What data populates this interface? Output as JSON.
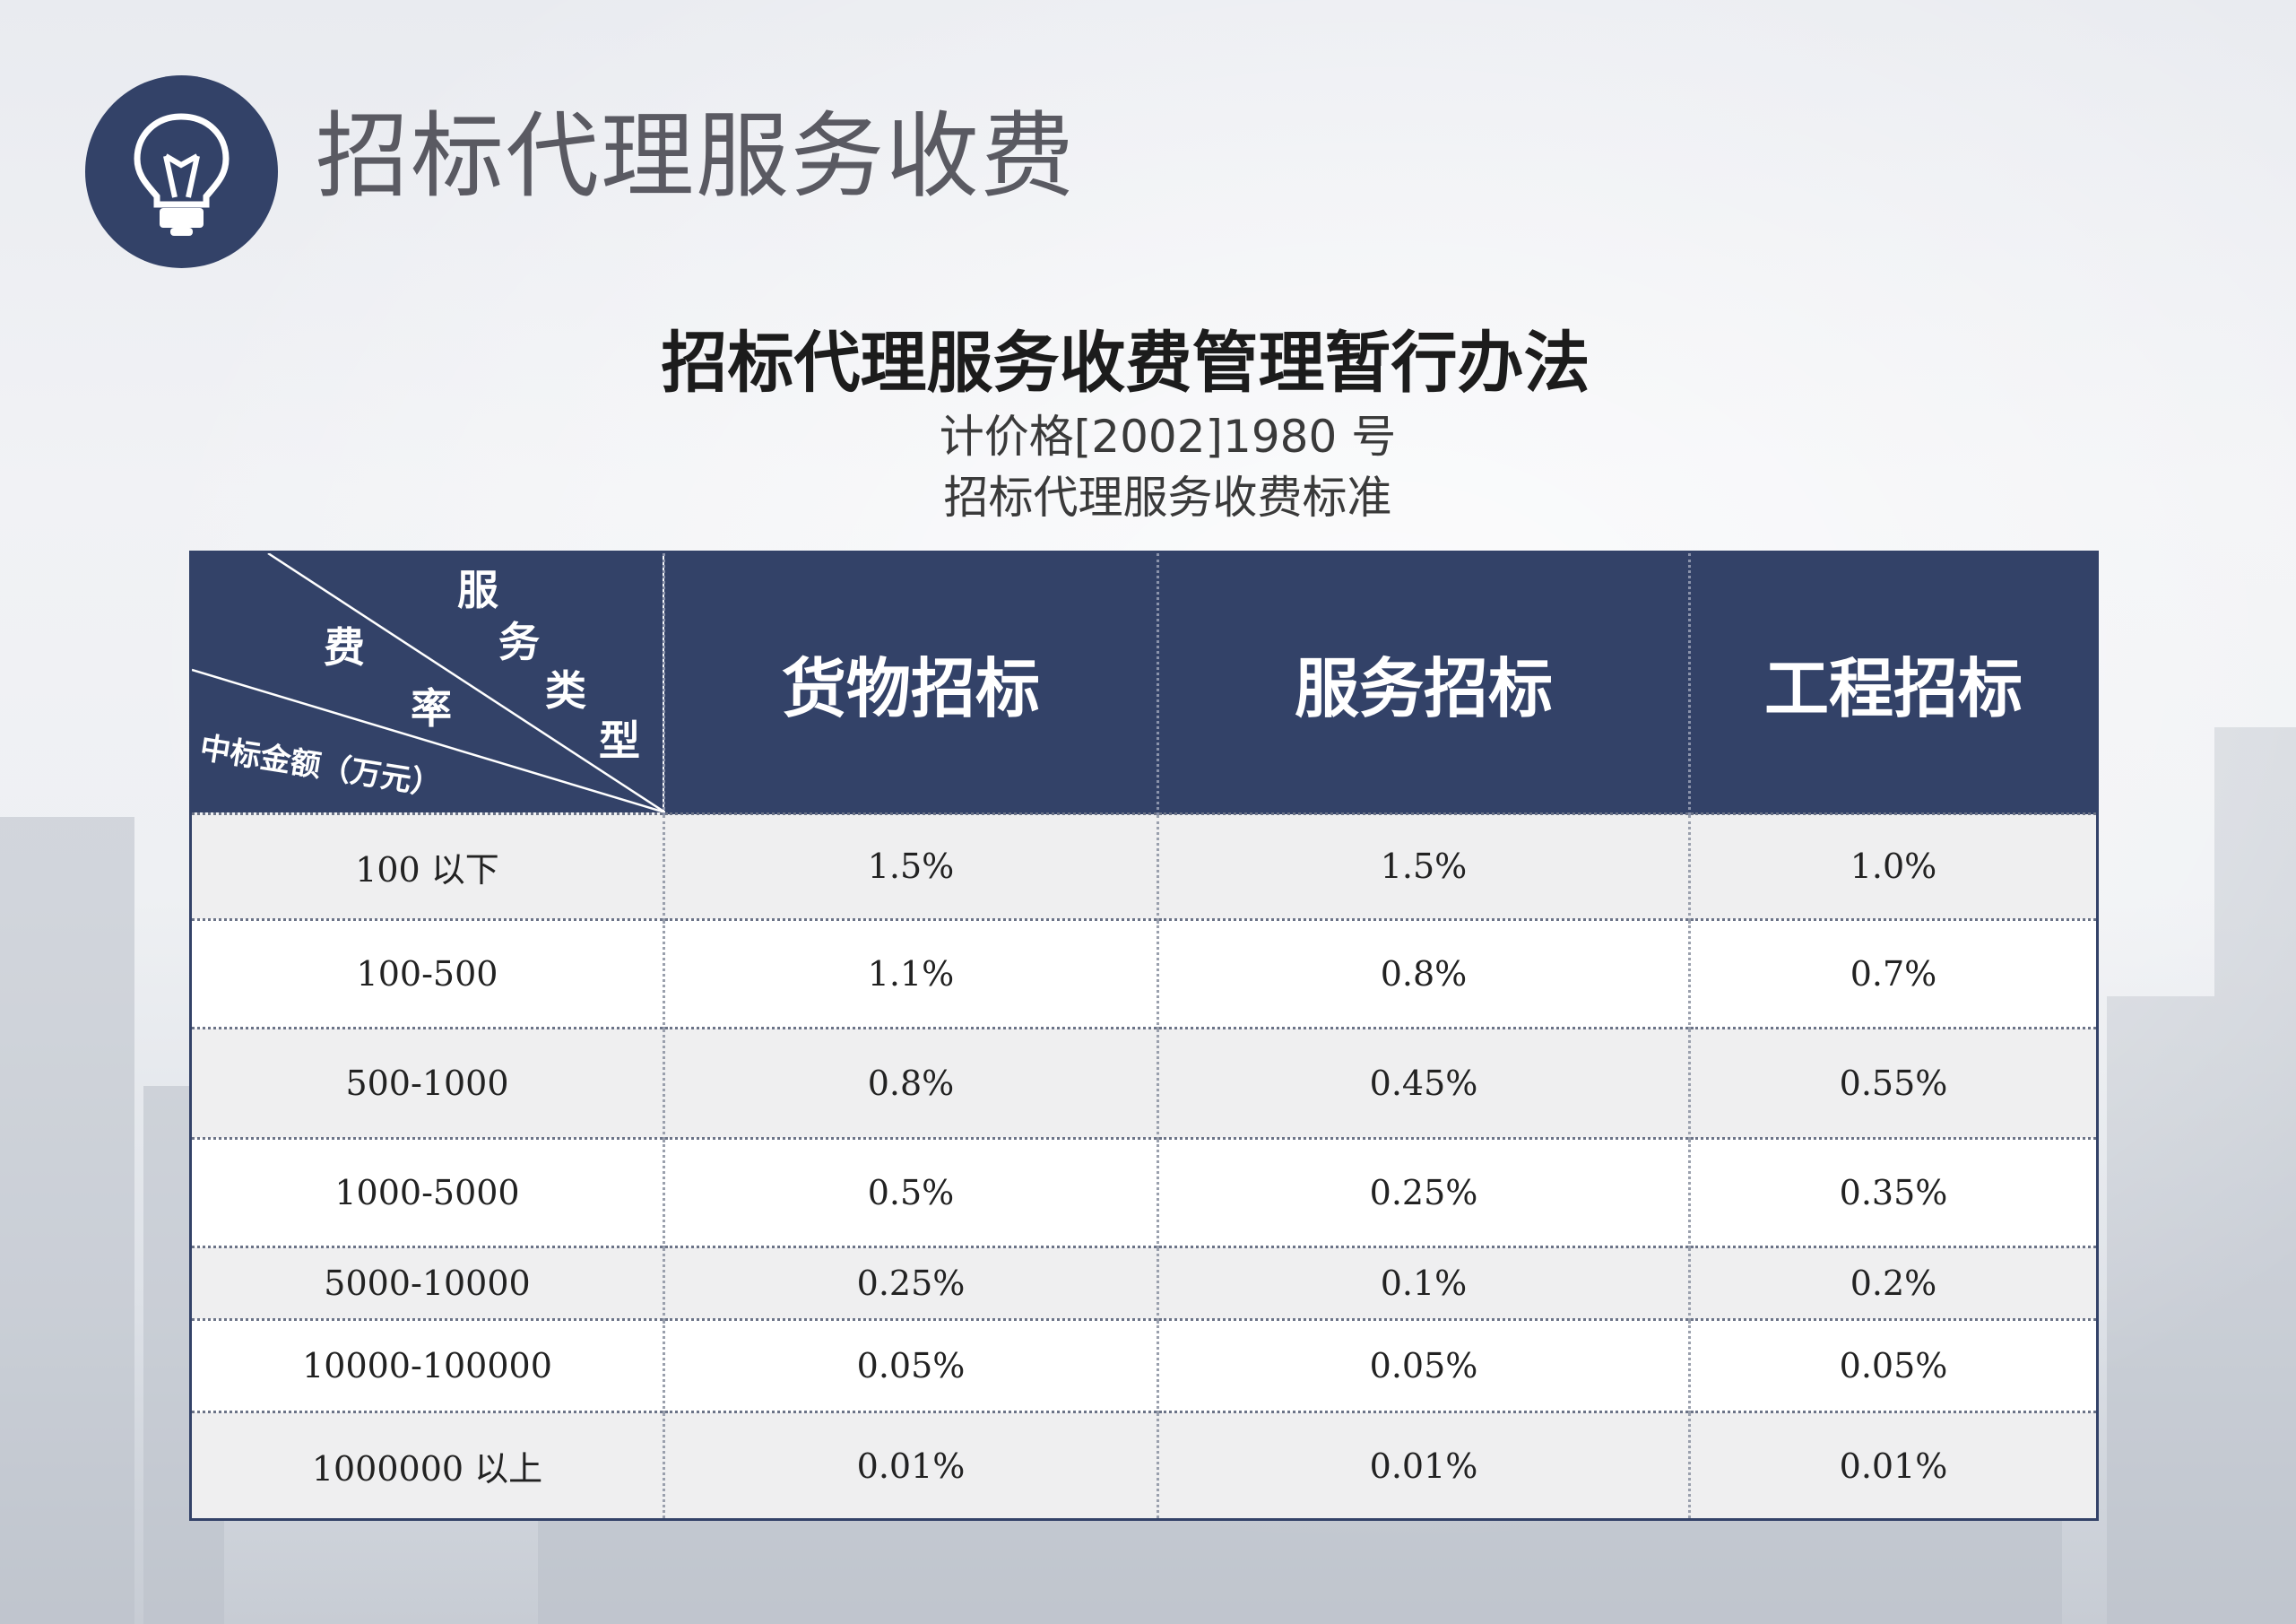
{
  "page_title": "招标代理服务收费",
  "doc": {
    "title": "招标代理服务收费管理暂行办法",
    "ref": "计价格[2002]1980 号",
    "subtitle": "招标代理服务收费标准"
  },
  "table": {
    "corner": {
      "service_type": [
        "服",
        "务",
        "类",
        "型"
      ],
      "rate": [
        "费",
        "率"
      ],
      "amount": "中标金额（万元）"
    },
    "headers": [
      "货物招标",
      "服务招标",
      "工程招标"
    ],
    "rows": [
      {
        "amount": "100  以下",
        "goods": "1.5%",
        "service": "1.5%",
        "engineering": "1.0%"
      },
      {
        "amount": "100-500",
        "goods": "1.1%",
        "service": "0.8%",
        "engineering": "0.7%"
      },
      {
        "amount": "500-1000",
        "goods": "0.8%",
        "service": "0.45%",
        "engineering": "0.55%"
      },
      {
        "amount": "1000-5000",
        "goods": "0.5%",
        "service": "0.25%",
        "engineering": "0.35%"
      },
      {
        "amount": "5000-10000",
        "goods": "0.25%",
        "service": "0.1%",
        "engineering": "0.2%"
      },
      {
        "amount": "10000-100000",
        "goods": "0.05%",
        "service": "0.05%",
        "engineering": "0.05%"
      },
      {
        "amount": "1000000  以上",
        "goods": "0.01%",
        "service": "0.01%",
        "engineering": "0.01%"
      }
    ]
  },
  "colors": {
    "header_bg": "#334268",
    "badge_bg": "#334268"
  },
  "icons": {
    "badge": "lightbulb-icon"
  }
}
